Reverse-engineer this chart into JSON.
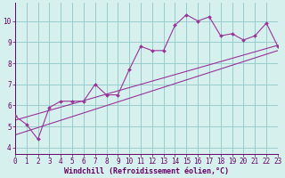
{
  "xlabel": "Windchill (Refroidissement éolien,°C)",
  "background_color": "#d6f0ee",
  "grid_color": "#99cccc",
  "line_color": "#993399",
  "x_data": [
    0,
    1,
    2,
    3,
    4,
    5,
    6,
    7,
    8,
    9,
    10,
    11,
    12,
    13,
    14,
    15,
    16,
    17,
    18,
    19,
    20,
    21,
    22,
    23
  ],
  "y_data": [
    5.5,
    5.1,
    4.4,
    5.9,
    6.2,
    6.2,
    6.2,
    7.0,
    6.5,
    6.5,
    7.7,
    8.8,
    8.6,
    8.6,
    9.8,
    10.3,
    10.0,
    10.2,
    9.3,
    9.4,
    9.1,
    9.3,
    9.9,
    8.8
  ],
  "line1_y_start": 5.3,
  "line1_y_end": 8.85,
  "line2_y_start": 4.6,
  "line2_y_end": 8.6,
  "ylim": [
    3.7,
    10.85
  ],
  "xlim": [
    0,
    23
  ],
  "yticks": [
    4,
    5,
    6,
    7,
    8,
    9,
    10
  ],
  "xticks": [
    0,
    1,
    2,
    3,
    4,
    5,
    6,
    7,
    8,
    9,
    10,
    11,
    12,
    13,
    14,
    15,
    16,
    17,
    18,
    19,
    20,
    21,
    22,
    23
  ],
  "tick_fontsize": 5.5,
  "xlabel_fontsize": 6.0
}
